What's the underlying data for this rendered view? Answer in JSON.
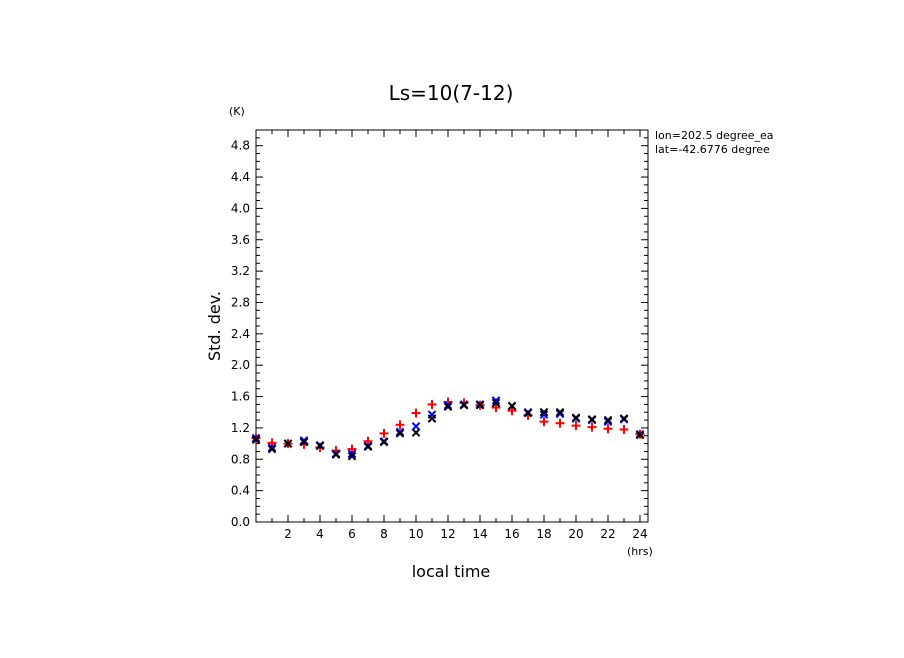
{
  "chart_data": {
    "type": "scatter",
    "title": "Ls=10(7-12)",
    "xlabel": "local time",
    "ylabel": "Std. dev.",
    "x_unit": "(hrs)",
    "y_unit": "(K)",
    "xlim": [
      0,
      24.5
    ],
    "ylim": [
      0,
      5.0
    ],
    "x_ticks": [
      2,
      4,
      6,
      8,
      10,
      12,
      14,
      16,
      18,
      20,
      22,
      24
    ],
    "y_ticks": [
      0.0,
      0.4,
      0.8,
      1.2,
      1.6,
      2.0,
      2.4,
      2.8,
      3.2,
      3.6,
      4.0,
      4.4,
      4.8
    ],
    "y_tick_labels": [
      "0.0",
      "0.4",
      "0.8",
      "1.2",
      "1.6",
      "2.0",
      "2.4",
      "2.8",
      "3.2",
      "3.6",
      "4.0",
      "4.4",
      "4.8"
    ],
    "grid": false,
    "annotations": [
      "lon=202.5 degree_ea",
      "lat=-42.6776 degree"
    ],
    "x": [
      0.0,
      1.0,
      2.0,
      3.0,
      4.0,
      5.0,
      6.0,
      7.0,
      8.0,
      9.0,
      10.0,
      11.0,
      12.0,
      13.0,
      14.0,
      15.0,
      16.0,
      17.0,
      18.0,
      19.0,
      20.0,
      21.0,
      22.0,
      23.0,
      24.0
    ],
    "series": [
      {
        "marker": "plus",
        "color": "#ff0000",
        "values": [
          1.07,
          1.01,
          1.0,
          0.99,
          0.95,
          0.91,
          0.93,
          1.03,
          1.13,
          1.24,
          1.39,
          1.5,
          1.53,
          1.52,
          1.49,
          1.46,
          1.42,
          1.36,
          1.28,
          1.26,
          1.23,
          1.21,
          1.19,
          1.18,
          1.12
        ]
      },
      {
        "marker": "cross",
        "color": "#0000ff",
        "values": [
          1.07,
          0.95,
          1.0,
          1.04,
          0.98,
          0.87,
          0.87,
          0.97,
          1.03,
          1.15,
          1.22,
          1.37,
          1.49,
          1.5,
          1.5,
          1.55,
          1.48,
          1.4,
          1.37,
          1.38,
          1.32,
          1.3,
          1.28,
          1.31,
          1.12
        ]
      },
      {
        "marker": "cross",
        "color": "#000000",
        "values": [
          1.05,
          0.93,
          1.0,
          1.02,
          0.97,
          0.86,
          0.84,
          0.96,
          1.02,
          1.13,
          1.14,
          1.32,
          1.47,
          1.49,
          1.49,
          1.52,
          1.48,
          1.39,
          1.4,
          1.4,
          1.33,
          1.31,
          1.3,
          1.32,
          1.11
        ]
      }
    ]
  }
}
